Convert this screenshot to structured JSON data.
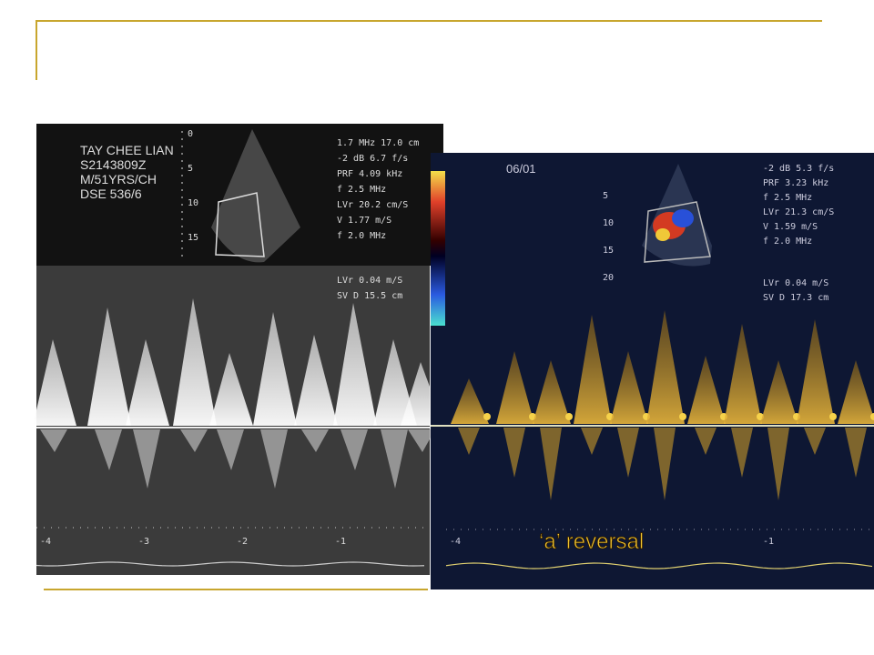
{
  "left_image": {
    "patient": [
      "TAY CHEE LIAN",
      "S2143809Z",
      "M/51YRS/CH",
      "DSE 536/6"
    ],
    "settings": [
      "1.7 MHz  17.0 cm",
      "-2 dB  6.7 f/s",
      "PRF 4.09 kHz",
      "f 2.5 MHz",
      "LVr 20.2 cm/S",
      "V 1.77 m/S",
      "f 2.0 MHz",
      "LVr 0.04 m/S",
      "SV D 15.5 cm"
    ],
    "depth_scale": [
      "0",
      "5",
      "10",
      "15"
    ],
    "time_scale": [
      "-4",
      "-3",
      "-2",
      "-1"
    ]
  },
  "right_image": {
    "date": "06/01",
    "settings": [
      "-2 dB  5.3 f/s",
      "PRF 3.23 kHz",
      "f 2.5 MHz",
      "LVr 21.3 cm/S",
      "V 1.59 m/S",
      "f 2.0 MHz",
      "LVr 0.04 m/S",
      "SV D 17.3 cm"
    ],
    "depth_scale": [
      "5",
      "10",
      "15",
      "20"
    ],
    "time_scale": [
      "-4",
      "-1"
    ]
  },
  "caption": "‘a’ reversal"
}
